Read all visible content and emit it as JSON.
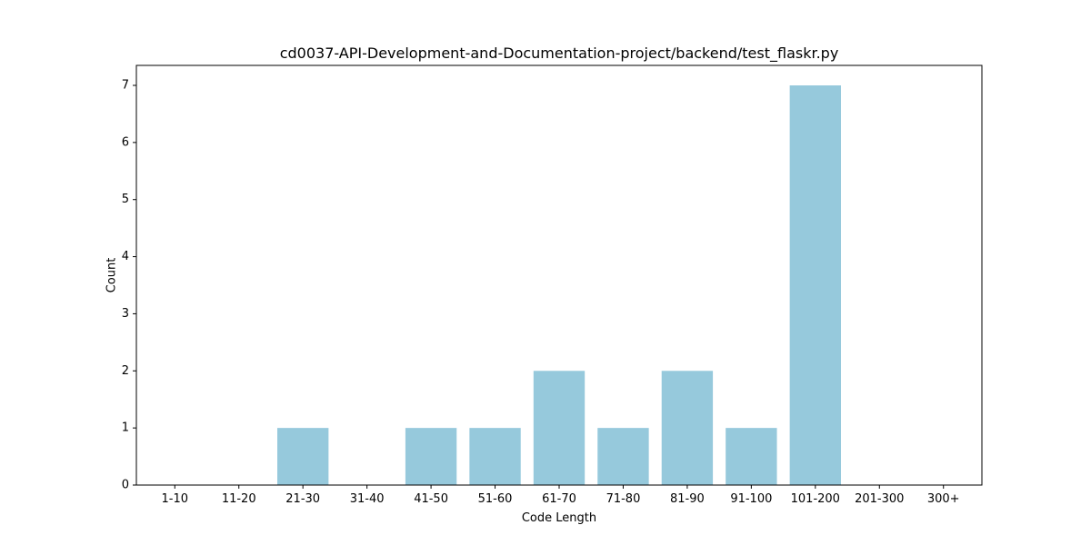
{
  "chart_data": {
    "type": "bar",
    "title": "cd0037-API-Development-and-Documentation-project/backend/test_flaskr.py",
    "xlabel": "Code Length",
    "ylabel": "Count",
    "categories": [
      "1-10",
      "11-20",
      "21-30",
      "31-40",
      "41-50",
      "51-60",
      "61-70",
      "71-80",
      "81-90",
      "91-100",
      "101-200",
      "201-300",
      "300+"
    ],
    "values": [
      0,
      0,
      1,
      0,
      1,
      1,
      2,
      1,
      2,
      1,
      7,
      0,
      0
    ],
    "ylim": [
      0,
      7.35
    ],
    "yticks": [
      0,
      1,
      2,
      3,
      4,
      5,
      6,
      7
    ],
    "bar_color": "#96c9dc",
    "grid": false
  }
}
